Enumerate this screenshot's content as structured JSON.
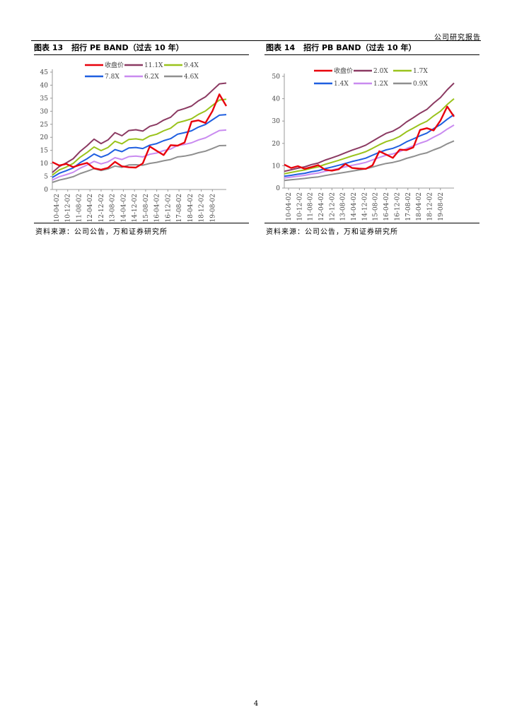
{
  "page": {
    "header": "公司研究报告",
    "page_number": "4"
  },
  "figures": [
    {
      "label": "图表 13",
      "title": "招行 PE BAND（过去 10 年）",
      "source": "资料来源：公司公告，万和证券研究所"
    },
    {
      "label": "图表 14",
      "title": "招行 PB BAND（过去 10 年）",
      "source": "资料来源：公司公告，万和证券研究所"
    }
  ],
  "chart_data": [
    {
      "type": "line",
      "title": "招行 PE BAND（过去 10 年）",
      "legend_position": "top",
      "x_ticks": [
        "10-04-02",
        "10-12-02",
        "11-08-02",
        "12-04-02",
        "12-12-02",
        "13-08-02",
        "14-04-02",
        "14-12-02",
        "15-08-02",
        "16-04-02",
        "16-12-02",
        "17-08-02",
        "18-04-02",
        "18-12-02",
        "19-08-02"
      ],
      "ylim": [
        0,
        45
      ],
      "y_ticks": [
        0,
        5,
        10,
        15,
        20,
        25,
        30,
        35,
        40,
        45
      ],
      "grid": false,
      "series": [
        {
          "name": "收盘价",
          "color": "#e8000b",
          "values": [
            10.5,
            9.2,
            9.8,
            8.6,
            9.5,
            10.2,
            8.1,
            7.6,
            8.3,
            10.6,
            8.9,
            8.5,
            8.4,
            10.0,
            16.5,
            14.8,
            13.2,
            17.0,
            16.8,
            18.0,
            26.0,
            26.5,
            25.5,
            30.0,
            36.5,
            32.0
          ]
        },
        {
          "name": "11.1X",
          "color": "#8b3a62",
          "values": [
            6.5,
            8.8,
            10.2,
            11.8,
            14.6,
            16.8,
            19.3,
            17.6,
            19.0,
            21.8,
            20.6,
            22.6,
            22.9,
            22.4,
            24.2,
            25.0,
            26.6,
            27.7,
            30.2,
            31.0,
            32.0,
            34.0,
            35.5,
            38.0,
            40.5,
            40.8
          ]
        },
        {
          "name": "9.4X",
          "color": "#9ac31c",
          "values": [
            5.5,
            7.5,
            8.6,
            10.0,
            12.4,
            14.2,
            16.3,
            14.9,
            16.1,
            18.5,
            17.5,
            19.2,
            19.4,
            19.0,
            20.5,
            21.2,
            22.5,
            23.5,
            25.6,
            26.3,
            27.1,
            28.8,
            30.1,
            32.2,
            34.3,
            34.6
          ]
        },
        {
          "name": "7.8X",
          "color": "#1f5fe0",
          "values": [
            4.6,
            6.2,
            7.2,
            8.3,
            10.3,
            11.8,
            13.6,
            12.4,
            13.4,
            15.3,
            14.5,
            15.9,
            16.1,
            15.7,
            17.0,
            17.6,
            18.7,
            19.5,
            21.2,
            21.8,
            22.5,
            23.9,
            24.9,
            26.7,
            28.5,
            28.7
          ]
        },
        {
          "name": "6.2X",
          "color": "#c98bf0",
          "values": [
            3.6,
            4.9,
            5.7,
            6.6,
            8.2,
            9.4,
            10.8,
            9.8,
            10.6,
            12.2,
            11.5,
            12.6,
            12.8,
            12.5,
            13.5,
            14.0,
            14.9,
            15.5,
            16.9,
            17.3,
            17.9,
            19.0,
            19.8,
            21.2,
            22.6,
            22.8
          ]
        },
        {
          "name": "4.6X",
          "color": "#8f8f8f",
          "values": [
            2.7,
            3.6,
            4.2,
            4.9,
            6.1,
            7.0,
            8.0,
            7.3,
            7.9,
            9.0,
            8.5,
            9.4,
            9.5,
            9.3,
            10.0,
            10.4,
            11.0,
            11.5,
            12.5,
            12.8,
            13.3,
            14.1,
            14.7,
            15.7,
            16.8,
            16.9
          ]
        }
      ]
    },
    {
      "type": "line",
      "title": "招行 PB BAND（过去 10 年）",
      "legend_position": "top",
      "x_ticks": [
        "10-04-02",
        "10-12-02",
        "11-08-02",
        "12-04-02",
        "12-12-02",
        "13-08-02",
        "14-04-02",
        "14-12-02",
        "15-08-02",
        "16-04-02",
        "16-12-02",
        "17-08-02",
        "18-04-02",
        "18-12-02",
        "19-08-02"
      ],
      "ylim": [
        0,
        50
      ],
      "y_ticks": [
        0,
        10,
        20,
        30,
        40,
        50
      ],
      "grid": false,
      "series": [
        {
          "name": "收盘价",
          "color": "#e8000b",
          "values": [
            10.5,
            9.0,
            9.8,
            8.6,
            9.4,
            10.3,
            8.2,
            7.8,
            8.4,
            10.8,
            9.0,
            8.7,
            8.6,
            10.2,
            16.5,
            15.0,
            13.5,
            17.2,
            17.0,
            18.2,
            26.0,
            26.8,
            25.8,
            30.2,
            36.5,
            32.0
          ]
        },
        {
          "name": "2.0X",
          "color": "#8b3a62",
          "values": [
            7.5,
            8.2,
            8.9,
            9.5,
            10.5,
            11.2,
            12.5,
            13.5,
            14.6,
            15.8,
            17.0,
            18.0,
            19.2,
            21.0,
            22.8,
            24.5,
            25.5,
            27.2,
            29.6,
            31.5,
            33.5,
            35.2,
            38.0,
            40.5,
            44.0,
            47.0
          ]
        },
        {
          "name": "1.7X",
          "color": "#9ac31c",
          "values": [
            6.4,
            7.0,
            7.6,
            8.1,
            8.9,
            9.5,
            10.6,
            11.5,
            12.4,
            13.4,
            14.4,
            15.3,
            16.3,
            17.8,
            19.4,
            20.8,
            21.7,
            23.1,
            25.2,
            26.8,
            28.5,
            29.9,
            32.3,
            34.4,
            37.4,
            40.0
          ]
        },
        {
          "name": "1.4X",
          "color": "#1f5fe0",
          "values": [
            5.3,
            5.7,
            6.2,
            6.6,
            7.3,
            7.8,
            8.7,
            9.4,
            10.2,
            11.0,
            11.9,
            12.6,
            13.4,
            14.7,
            16.0,
            17.1,
            17.8,
            19.0,
            20.7,
            22.0,
            23.4,
            24.6,
            26.6,
            28.4,
            30.8,
            32.9
          ]
        },
        {
          "name": "1.2X",
          "color": "#c98bf0",
          "values": [
            4.5,
            4.9,
            5.3,
            5.7,
            6.3,
            6.7,
            7.5,
            8.1,
            8.8,
            9.5,
            10.2,
            10.8,
            11.5,
            12.6,
            13.7,
            14.7,
            15.3,
            16.3,
            17.7,
            18.9,
            20.1,
            21.1,
            22.8,
            24.3,
            26.4,
            28.2
          ]
        },
        {
          "name": "0.9X",
          "color": "#8f8f8f",
          "values": [
            3.4,
            3.7,
            4.0,
            4.3,
            4.7,
            5.0,
            5.6,
            6.1,
            6.6,
            7.1,
            7.6,
            8.1,
            8.6,
            9.4,
            10.3,
            11.0,
            11.5,
            12.2,
            13.3,
            14.1,
            15.1,
            15.8,
            17.1,
            18.2,
            19.8,
            21.1
          ]
        }
      ]
    }
  ]
}
